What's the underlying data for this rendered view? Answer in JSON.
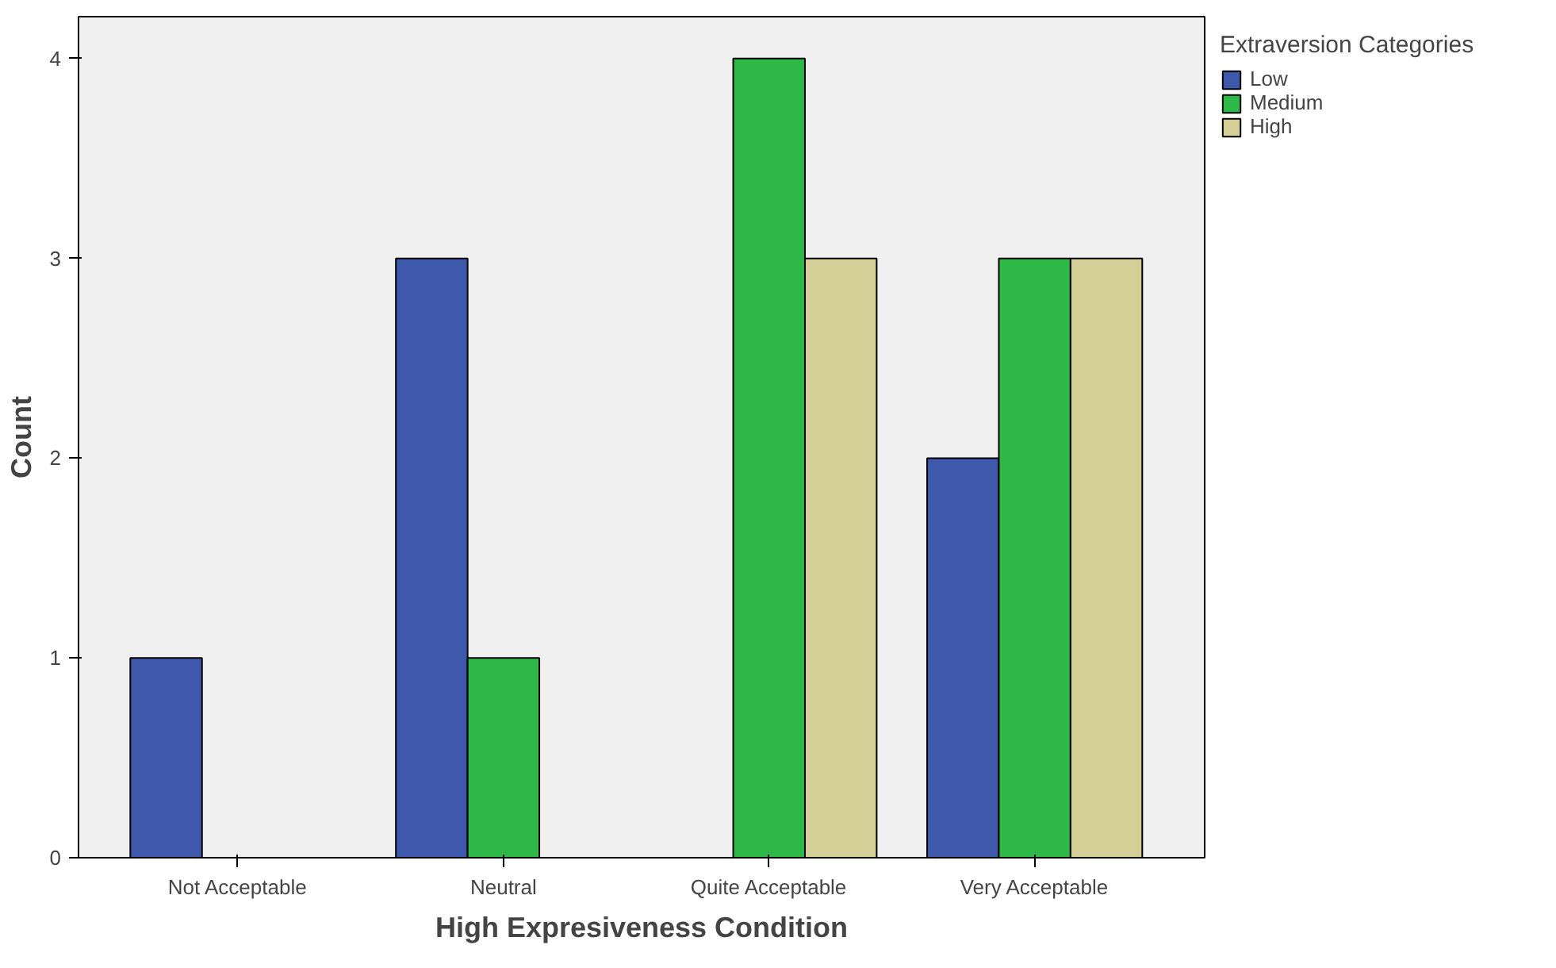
{
  "chart_data": {
    "type": "bar",
    "xlabel": "High Expresiveness Condition",
    "ylabel": "Count",
    "legend_title": "Extraversion Categories",
    "categories": [
      "Not Acceptable",
      "Neutral",
      "Quite Acceptable",
      "Very Acceptable"
    ],
    "series": [
      {
        "name": "Low",
        "color": "#3e58ac",
        "values": [
          1,
          3,
          null,
          2
        ]
      },
      {
        "name": "Medium",
        "color": "#2eb848",
        "values": [
          null,
          1,
          4,
          3
        ]
      },
      {
        "name": "High",
        "color": "#d4cf97",
        "values": [
          null,
          null,
          3,
          3
        ]
      }
    ],
    "ylim": [
      0,
      4.21
    ],
    "yticks": [
      0,
      1,
      2,
      3,
      4
    ],
    "grid": false,
    "legend": "top right"
  }
}
